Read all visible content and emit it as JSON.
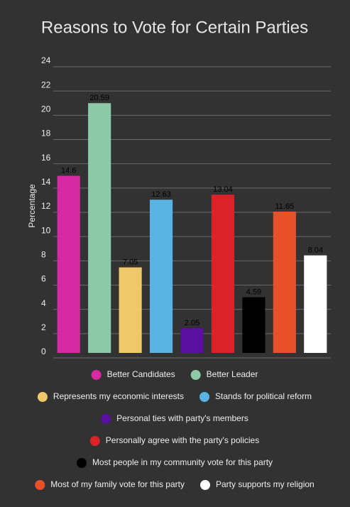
{
  "chart_data": {
    "type": "bar",
    "title": "Reasons to Vote for Certain Parties",
    "y_label": "Percentage",
    "categories": [
      "Better Candidates",
      "Better Leader",
      "Represents my economic interests",
      "Stands for political reform",
      "Personal ties with party's members",
      "Personally agree with the party's policies",
      "Most people in my community vote for this party",
      "Most of my family vote for this party",
      "Party supports my religion"
    ],
    "values": [
      14.6,
      20.59,
      7.05,
      12.63,
      2.05,
      13.04,
      4.59,
      11.65,
      8.04
    ],
    "colors": [
      "#d62aa3",
      "#8cc9a6",
      "#efc86a",
      "#5ab4e3",
      "#5a0fa0",
      "#da2228",
      "#000000",
      "#e8502a",
      "#ffffff"
    ],
    "ylim": [
      0,
      24
    ],
    "yticks": [
      0,
      2,
      4,
      6,
      8,
      10,
      12,
      14,
      16,
      18,
      20,
      22,
      24
    ],
    "grid": true
  }
}
